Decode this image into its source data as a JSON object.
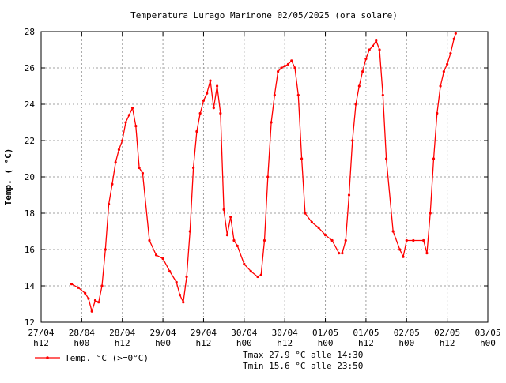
{
  "chart_data": {
    "type": "line",
    "title": "Temperatura Lurago Marinone 02/05/2025 (ora solare)",
    "xlabel": "",
    "ylabel": "Temp. ( °C)",
    "ylim": [
      12,
      28
    ],
    "yticks": [
      12,
      14,
      16,
      18,
      20,
      22,
      24,
      26,
      28
    ],
    "xlim": [
      "2025-04-27 12:00",
      "2025-05-03 00:00"
    ],
    "xticks": [
      {
        "t": "2025-04-27 12:00",
        "l1": "27/04",
        "l2": "h12"
      },
      {
        "t": "2025-04-28 00:00",
        "l1": "28/04",
        "l2": "h00"
      },
      {
        "t": "2025-04-28 12:00",
        "l1": "28/04",
        "l2": "h12"
      },
      {
        "t": "2025-04-29 00:00",
        "l1": "29/04",
        "l2": "h00"
      },
      {
        "t": "2025-04-29 12:00",
        "l1": "29/04",
        "l2": "h12"
      },
      {
        "t": "2025-04-30 00:00",
        "l1": "30/04",
        "l2": "h00"
      },
      {
        "t": "2025-04-30 12:00",
        "l1": "30/04",
        "l2": "h12"
      },
      {
        "t": "2025-05-01 00:00",
        "l1": "01/05",
        "l2": "h00"
      },
      {
        "t": "2025-05-01 12:00",
        "l1": "01/05",
        "l2": "h12"
      },
      {
        "t": "2025-05-02 00:00",
        "l1": "02/05",
        "l2": "h00"
      },
      {
        "t": "2025-05-02 12:00",
        "l1": "02/05",
        "l2": "h12"
      },
      {
        "t": "2025-05-03 00:00",
        "l1": "03/05",
        "l2": "h00"
      }
    ],
    "grid": true,
    "series": [
      {
        "name": "Temp. °C (>=0°C)",
        "color": "#ff0000",
        "x": [
          "2025-04-27 21:00",
          "2025-04-27 23:00",
          "2025-04-28 01:00",
          "2025-04-28 02:00",
          "2025-04-28 03:00",
          "2025-04-28 04:00",
          "2025-04-28 05:00",
          "2025-04-28 06:00",
          "2025-04-28 07:00",
          "2025-04-28 08:00",
          "2025-04-28 09:00",
          "2025-04-28 10:00",
          "2025-04-28 11:00",
          "2025-04-28 12:00",
          "2025-04-28 13:00",
          "2025-04-28 14:00",
          "2025-04-28 15:00",
          "2025-04-28 16:00",
          "2025-04-28 17:00",
          "2025-04-28 18:00",
          "2025-04-28 20:00",
          "2025-04-28 22:00",
          "2025-04-29 00:00",
          "2025-04-29 02:00",
          "2025-04-29 04:00",
          "2025-04-29 05:00",
          "2025-04-29 06:00",
          "2025-04-29 07:00",
          "2025-04-29 08:00",
          "2025-04-29 09:00",
          "2025-04-29 10:00",
          "2025-04-29 11:00",
          "2025-04-29 12:00",
          "2025-04-29 13:00",
          "2025-04-29 14:00",
          "2025-04-29 15:00",
          "2025-04-29 16:00",
          "2025-04-29 17:00",
          "2025-04-29 18:00",
          "2025-04-29 19:00",
          "2025-04-29 20:00",
          "2025-04-29 21:00",
          "2025-04-29 22:00",
          "2025-04-30 00:00",
          "2025-04-30 02:00",
          "2025-04-30 04:00",
          "2025-04-30 05:00",
          "2025-04-30 06:00",
          "2025-04-30 07:00",
          "2025-04-30 08:00",
          "2025-04-30 09:00",
          "2025-04-30 10:00",
          "2025-04-30 11:00",
          "2025-04-30 12:00",
          "2025-04-30 13:00",
          "2025-04-30 14:00",
          "2025-04-30 15:00",
          "2025-04-30 16:00",
          "2025-04-30 17:00",
          "2025-04-30 18:00",
          "2025-04-30 20:00",
          "2025-04-30 22:00",
          "2025-05-01 00:00",
          "2025-05-01 02:00",
          "2025-05-01 04:00",
          "2025-05-01 05:00",
          "2025-05-01 06:00",
          "2025-05-01 07:00",
          "2025-05-01 08:00",
          "2025-05-01 09:00",
          "2025-05-01 10:00",
          "2025-05-01 11:00",
          "2025-05-01 12:00",
          "2025-05-01 13:00",
          "2025-05-01 14:00",
          "2025-05-01 15:00",
          "2025-05-01 16:00",
          "2025-05-01 17:00",
          "2025-05-01 18:00",
          "2025-05-01 20:00",
          "2025-05-01 22:00",
          "2025-05-01 23:00",
          "2025-05-02 00:00",
          "2025-05-02 02:00",
          "2025-05-02 05:00",
          "2025-05-02 06:00",
          "2025-05-02 07:00",
          "2025-05-02 08:00",
          "2025-05-02 09:00",
          "2025-05-02 10:00",
          "2025-05-02 11:00",
          "2025-05-02 12:00",
          "2025-05-02 13:00",
          "2025-05-02 14:00",
          "2025-05-02 14:30"
        ],
        "y": [
          14.1,
          13.9,
          13.6,
          13.3,
          12.6,
          13.2,
          13.1,
          14.0,
          16.0,
          18.5,
          19.6,
          20.8,
          21.5,
          22.0,
          23.0,
          23.4,
          23.8,
          22.8,
          20.5,
          20.2,
          16.5,
          15.7,
          15.5,
          14.8,
          14.2,
          13.5,
          13.1,
          14.5,
          17.0,
          20.5,
          22.5,
          23.5,
          24.2,
          24.6,
          25.3,
          23.8,
          25.0,
          23.5,
          18.2,
          16.8,
          17.8,
          16.5,
          16.2,
          15.2,
          14.8,
          14.5,
          14.6,
          16.5,
          20.0,
          23.0,
          24.5,
          25.8,
          26.0,
          26.1,
          26.2,
          26.4,
          26.0,
          24.5,
          21.0,
          18.0,
          17.5,
          17.2,
          16.8,
          16.5,
          15.8,
          15.8,
          16.5,
          19.0,
          22.0,
          24.0,
          25.0,
          25.8,
          26.5,
          27.0,
          27.2,
          27.5,
          27.0,
          24.5,
          21.0,
          17.0,
          16.0,
          15.6,
          16.5,
          16.5,
          16.5,
          15.8,
          18.0,
          21.0,
          23.5,
          25.0,
          25.8,
          26.2,
          26.8,
          27.6,
          27.9
        ]
      }
    ],
    "legend": {
      "position": "bottom-left",
      "label": "Temp. °C (>=0°C)"
    },
    "annotations": [
      "Tmax 27.9 °C alle 14:30",
      "Tmin 15.6 °C alle 23:50"
    ]
  }
}
